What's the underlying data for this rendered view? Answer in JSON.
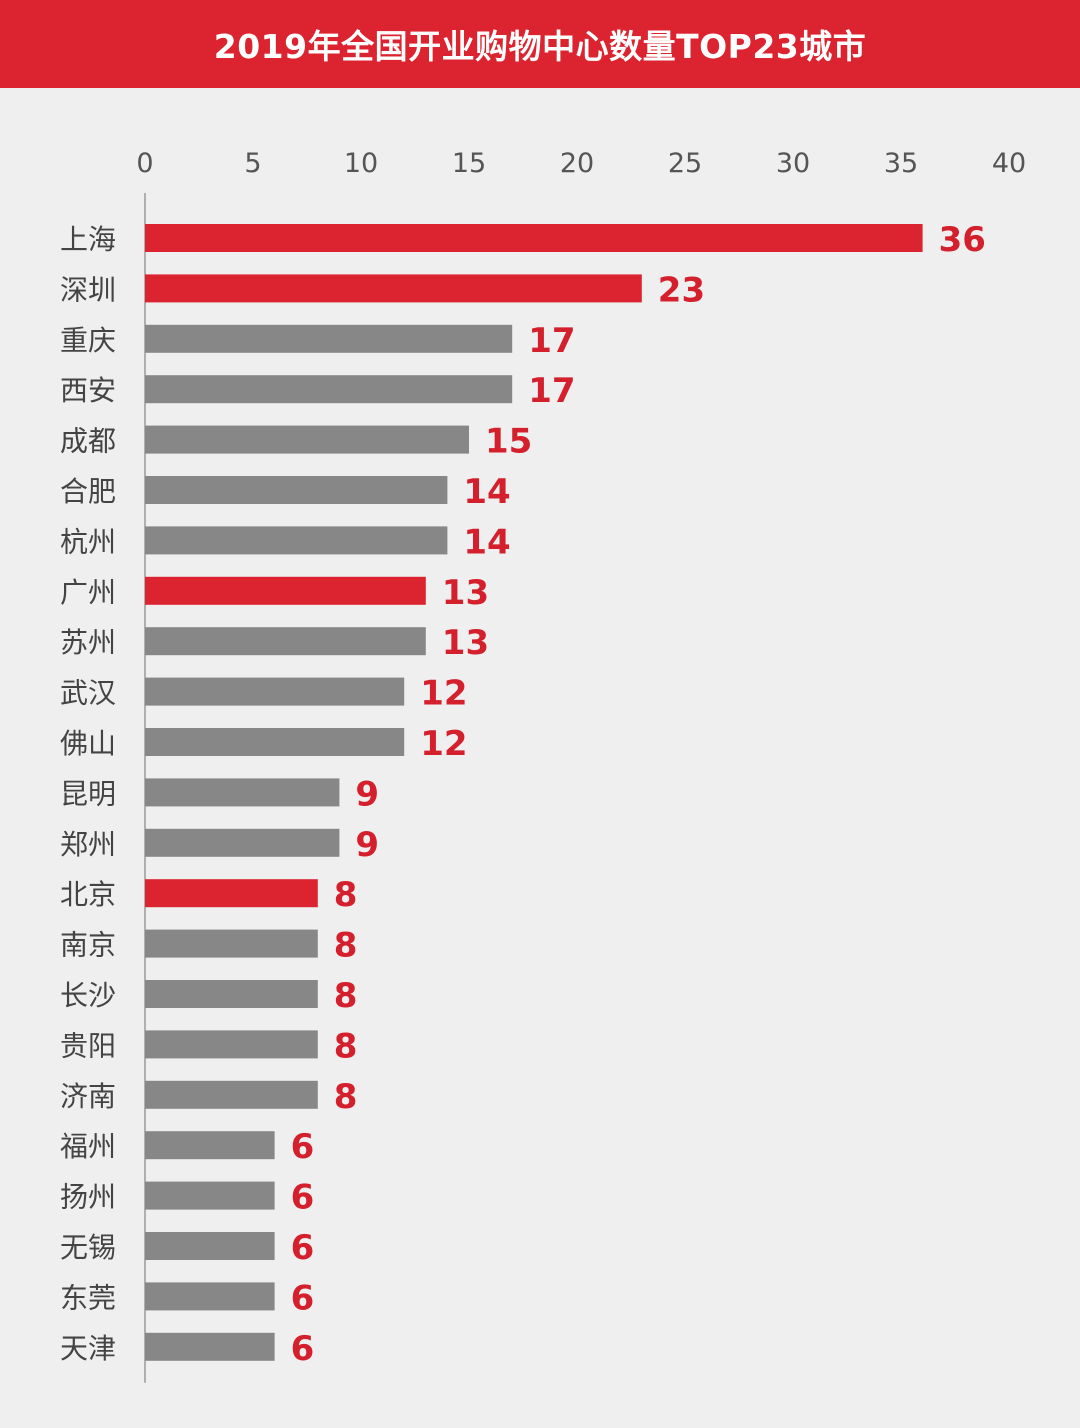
{
  "header": {
    "title": "2019年全国开业购物中心数量TOP23城市"
  },
  "colors": {
    "header_bg": "#dc2430",
    "highlight": "#dc2430",
    "default_bar": "#878787",
    "value_label": "#d4202c",
    "axis_text": "#555555",
    "city_text": "#444444"
  },
  "chart_data": {
    "type": "bar",
    "orientation": "horizontal",
    "title": "2019年全国开业购物中心数量TOP23城市",
    "xlabel": "",
    "ylabel": "",
    "xlim": [
      0,
      40
    ],
    "ticks": [
      0,
      5,
      10,
      15,
      20,
      25,
      30,
      35,
      40
    ],
    "grid": false,
    "categories": [
      "上海",
      "深圳",
      "重庆",
      "西安",
      "成都",
      "合肥",
      "杭州",
      "广州",
      "苏州",
      "武汉",
      "佛山",
      "昆明",
      "郑州",
      "北京",
      "南京",
      "长沙",
      "贵阳",
      "济南",
      "福州",
      "扬州",
      "无锡",
      "东莞",
      "天津"
    ],
    "values": [
      36,
      23,
      17,
      17,
      15,
      14,
      14,
      13,
      13,
      12,
      12,
      9,
      9,
      8,
      8,
      8,
      8,
      8,
      6,
      6,
      6,
      6,
      6
    ],
    "highlighted": [
      "上海",
      "深圳",
      "广州",
      "北京"
    ]
  }
}
